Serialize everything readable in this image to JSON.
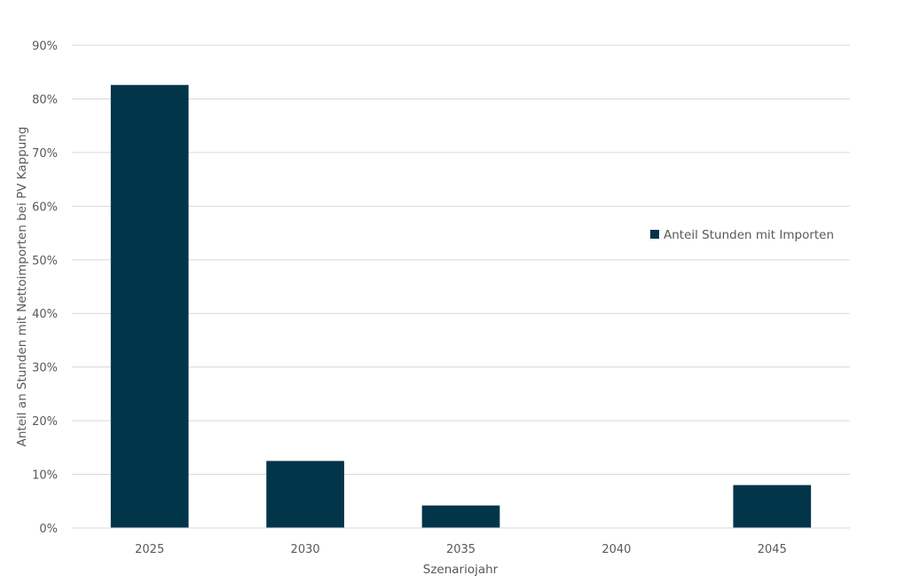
{
  "chart_data": {
    "type": "bar",
    "categories": [
      "2025",
      "2030",
      "2035",
      "2040",
      "2045"
    ],
    "series": [
      {
        "name": "Anteil Stunden mit Importen",
        "values": [
          82.6,
          12.5,
          4.2,
          0,
          8.0
        ],
        "color": "#03354a"
      }
    ],
    "xlabel": "Szenariojahr",
    "ylabel": "Anteil an Stunden mit Nettoimporten bei PV Kappung",
    "ylim": [
      0,
      90
    ],
    "yticks": [
      0,
      10,
      20,
      30,
      40,
      50,
      60,
      70,
      80,
      90
    ],
    "ytick_suffix": "%",
    "grid": true,
    "legend_position": "right"
  },
  "colors": {
    "bar": "#03354a",
    "grid": "#d9d9d9",
    "text": "#595959",
    "axis": "#d9d9d9"
  }
}
